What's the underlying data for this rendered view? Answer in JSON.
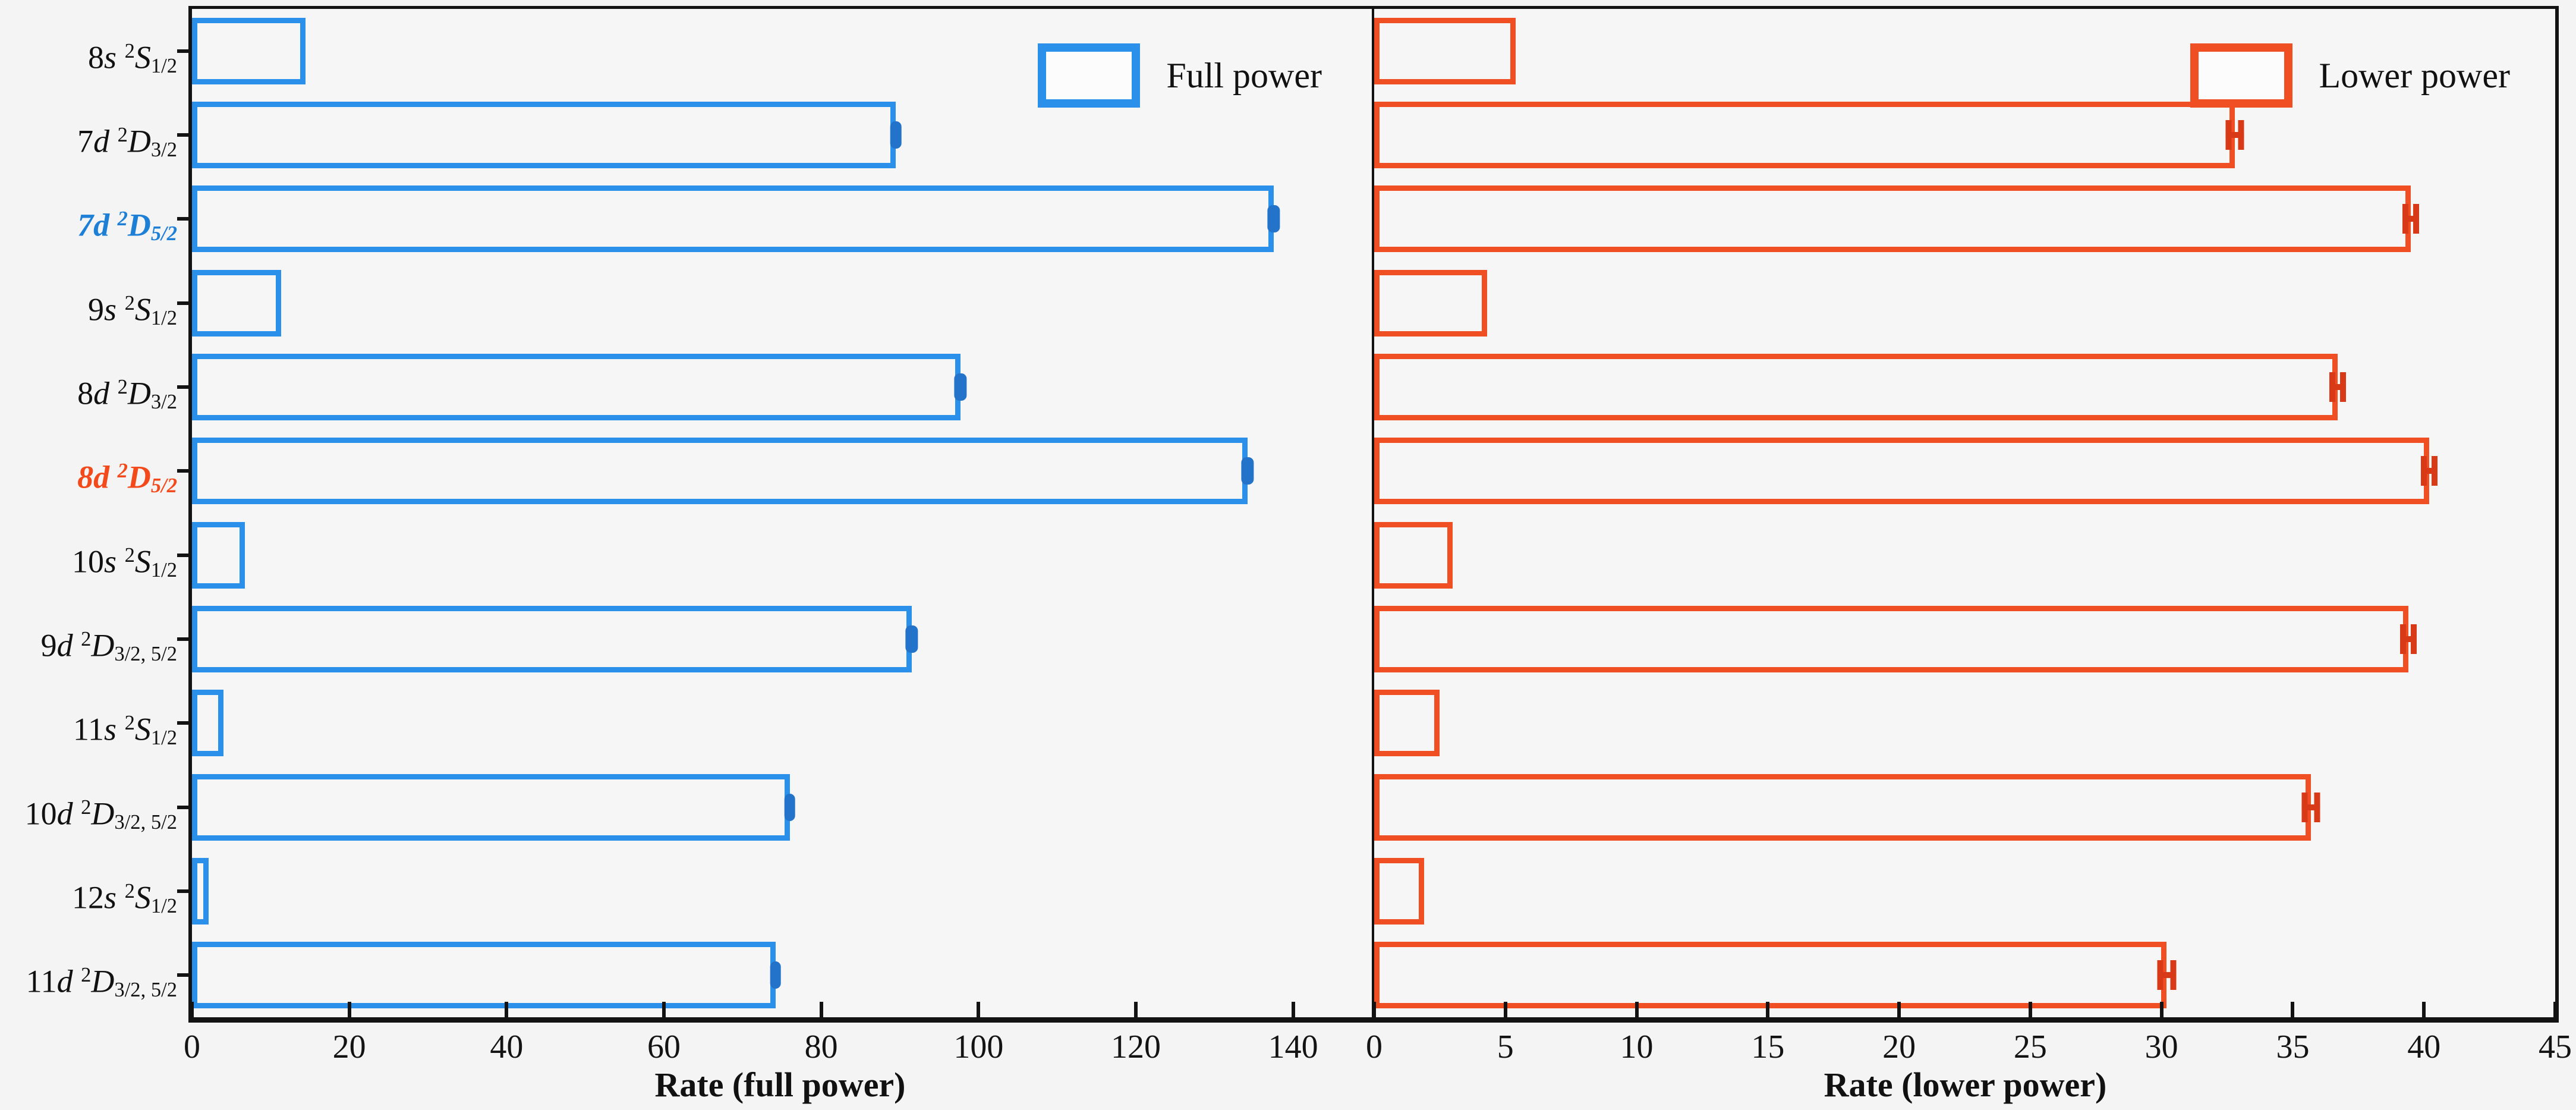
{
  "figure": {
    "background": "#f4f4f5",
    "panel_background": "#f6f6f7",
    "spine_color": "#131313"
  },
  "colors": {
    "full_power": "#2b90e9",
    "full_power_error": "#2373cb",
    "lower_power": "#f04e23",
    "lower_power_error": "#d83a18",
    "highlight_full_label": "#1e7fd6",
    "highlight_lower_label": "#f24a1a"
  },
  "legend": {
    "full": "Full power",
    "lower": "Lower power"
  },
  "axes": {
    "left": {
      "label": "Rate (full power)",
      "xlim": [
        0,
        150
      ],
      "ticks": [
        0,
        20,
        40,
        60,
        80,
        100,
        120,
        140
      ]
    },
    "right": {
      "label": "Rate (lower power)",
      "xlim": [
        0,
        45
      ],
      "ticks": [
        0,
        5,
        10,
        15,
        20,
        25,
        30,
        35,
        40,
        45
      ]
    }
  },
  "chart_data": {
    "type": "bar",
    "orientation": "horizontal",
    "grid": false,
    "categories": [
      {
        "text": "8s 2S1/2",
        "n": "8",
        "orb": "s",
        "term": "S",
        "j": "1/2",
        "highlight": null
      },
      {
        "text": "7d 2D3/2",
        "n": "7",
        "orb": "d",
        "term": "D",
        "j": "3/2",
        "highlight": null
      },
      {
        "text": "7d 2D5/2",
        "n": "7",
        "orb": "d",
        "term": "D",
        "j": "5/2",
        "highlight": "full"
      },
      {
        "text": "9s 2S1/2",
        "n": "9",
        "orb": "s",
        "term": "S",
        "j": "1/2",
        "highlight": null
      },
      {
        "text": "8d 2D3/2",
        "n": "8",
        "orb": "d",
        "term": "D",
        "j": "3/2",
        "highlight": null
      },
      {
        "text": "8d 2D5/2",
        "n": "8",
        "orb": "d",
        "term": "D",
        "j": "5/2",
        "highlight": "lower"
      },
      {
        "text": "10s 2S1/2",
        "n": "10",
        "orb": "s",
        "term": "S",
        "j": "1/2",
        "highlight": null
      },
      {
        "text": "9d 2D3/2,5/2",
        "n": "9",
        "orb": "d",
        "term": "D",
        "j": "3/2, 5/2",
        "highlight": null
      },
      {
        "text": "11s 2S1/2",
        "n": "11",
        "orb": "s",
        "term": "S",
        "j": "1/2",
        "highlight": null
      },
      {
        "text": "10d 2D3/2,5/2",
        "n": "10",
        "orb": "d",
        "term": "D",
        "j": "3/2, 5/2",
        "highlight": null
      },
      {
        "text": "12s 2S1/2",
        "n": "12",
        "orb": "s",
        "term": "S",
        "j": "1/2",
        "highlight": null
      },
      {
        "text": "11d 2D3/2,5/2",
        "n": "11",
        "orb": "d",
        "term": "D",
        "j": "3/2, 5/2",
        "highlight": null
      }
    ],
    "series": [
      {
        "name": "Full power",
        "panel": "left",
        "values": [
          14.4,
          89.5,
          137.5,
          11.3,
          97.7,
          134.2,
          6.7,
          91.5,
          4.0,
          76.0,
          2.1,
          74.2
        ],
        "errors": [
          0,
          0.7,
          0.8,
          0,
          0.8,
          0.8,
          0,
          0.8,
          0,
          0.7,
          0,
          0.7
        ]
      },
      {
        "name": "Lower power",
        "panel": "right",
        "values": [
          5.4,
          32.8,
          39.5,
          4.3,
          36.7,
          40.2,
          3.0,
          39.4,
          2.5,
          35.7,
          1.9,
          30.2
        ],
        "errors": [
          0,
          0.35,
          0.3,
          0,
          0.3,
          0.3,
          0,
          0.3,
          0,
          0.35,
          0,
          0.35
        ]
      }
    ]
  }
}
